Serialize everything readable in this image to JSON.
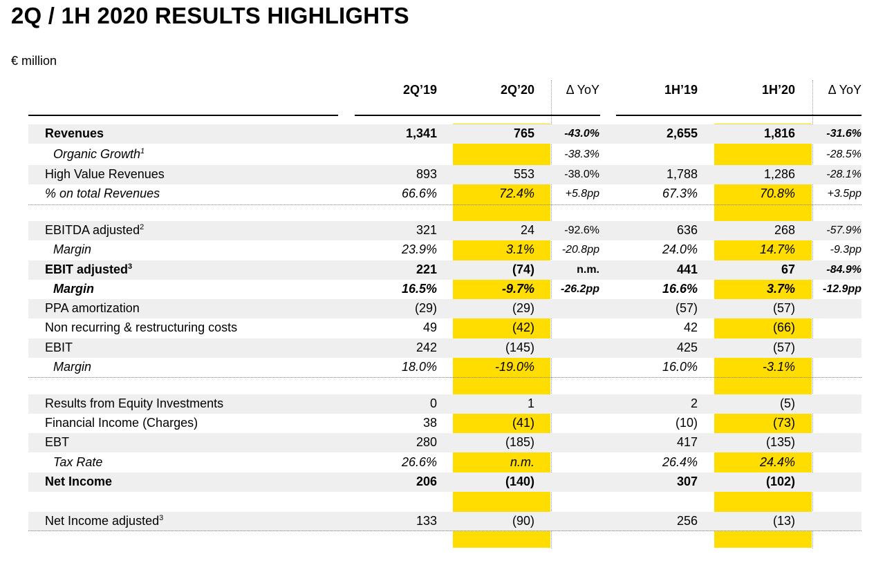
{
  "title": "2Q / 1H 2020 RESULTS HIGHLIGHTS",
  "unit": "€ million",
  "colors": {
    "highlight": "#FFDD00",
    "band": "#efefef"
  },
  "columns": [
    "2Q’19",
    "2Q’20",
    "Δ YoY",
    "1H’19",
    "1H’20",
    "Δ YoY"
  ],
  "rows": [
    {
      "label": "Revenues",
      "sup": "",
      "values": [
        "1,341",
        "765",
        "-43.0%",
        "2,655",
        "1,816",
        "-31.6%"
      ]
    },
    {
      "label": "Organic Growth",
      "sup": "1",
      "values": [
        "",
        "",
        "-38.3%",
        "",
        "",
        "-28.5%"
      ]
    },
    {
      "label": "High Value Revenues",
      "sup": "",
      "values": [
        "893",
        "553",
        "-38.0%",
        "1,788",
        "1,286",
        "-28.1%"
      ]
    },
    {
      "label": "% on total Revenues",
      "sup": "",
      "values": [
        "66.6%",
        "72.4%",
        "+5.8pp",
        "67.3%",
        "70.8%",
        "+3.5pp"
      ]
    },
    {
      "label": "EBITDA adjusted",
      "sup": "2",
      "values": [
        "321",
        "24",
        "-92.6%",
        "636",
        "268",
        "-57.9%"
      ]
    },
    {
      "label": "Margin",
      "sup": "",
      "values": [
        "23.9%",
        "3.1%",
        "-20.8pp",
        "24.0%",
        "14.7%",
        "-9.3pp"
      ]
    },
    {
      "label": "EBIT adjusted",
      "sup": "3",
      "values": [
        "221",
        "(74)",
        "n.m.",
        "441",
        "67",
        "-84.9%"
      ]
    },
    {
      "label": "Margin",
      "sup": "",
      "values": [
        "16.5%",
        "-9.7%",
        "-26.2pp",
        "16.6%",
        "3.7%",
        "-12.9pp"
      ]
    },
    {
      "label": "PPA amortization",
      "sup": "",
      "values": [
        "(29)",
        "(29)",
        "",
        "(57)",
        "(57)",
        ""
      ]
    },
    {
      "label": "Non recurring & restructuring costs",
      "sup": "",
      "values": [
        "49",
        "(42)",
        "",
        "42",
        "(66)",
        ""
      ]
    },
    {
      "label": "EBIT",
      "sup": "",
      "values": [
        "242",
        "(145)",
        "",
        "425",
        "(57)",
        ""
      ]
    },
    {
      "label": "Margin",
      "sup": "",
      "values": [
        "18.0%",
        "-19.0%",
        "",
        "16.0%",
        "-3.1%",
        ""
      ]
    },
    {
      "label": "Results from Equity Investments",
      "sup": "",
      "values": [
        "0",
        "1",
        "",
        "2",
        "(5)",
        ""
      ]
    },
    {
      "label": "Financial Income (Charges)",
      "sup": "",
      "values": [
        "38",
        "(41)",
        "",
        "(10)",
        "(73)",
        ""
      ]
    },
    {
      "label": "EBT",
      "sup": "",
      "values": [
        "280",
        "(185)",
        "",
        "417",
        "(135)",
        ""
      ]
    },
    {
      "label": "Tax Rate",
      "sup": "",
      "values": [
        "26.6%",
        "n.m.",
        "",
        "26.4%",
        "24.4%",
        ""
      ]
    },
    {
      "label": "Net Income",
      "sup": "",
      "values": [
        "206",
        "(140)",
        "",
        "307",
        "(102)",
        ""
      ]
    },
    {
      "label": "Net Income adjusted",
      "sup": "3",
      "values": [
        "133",
        "(90)",
        "",
        "256",
        "(13)",
        ""
      ]
    }
  ]
}
